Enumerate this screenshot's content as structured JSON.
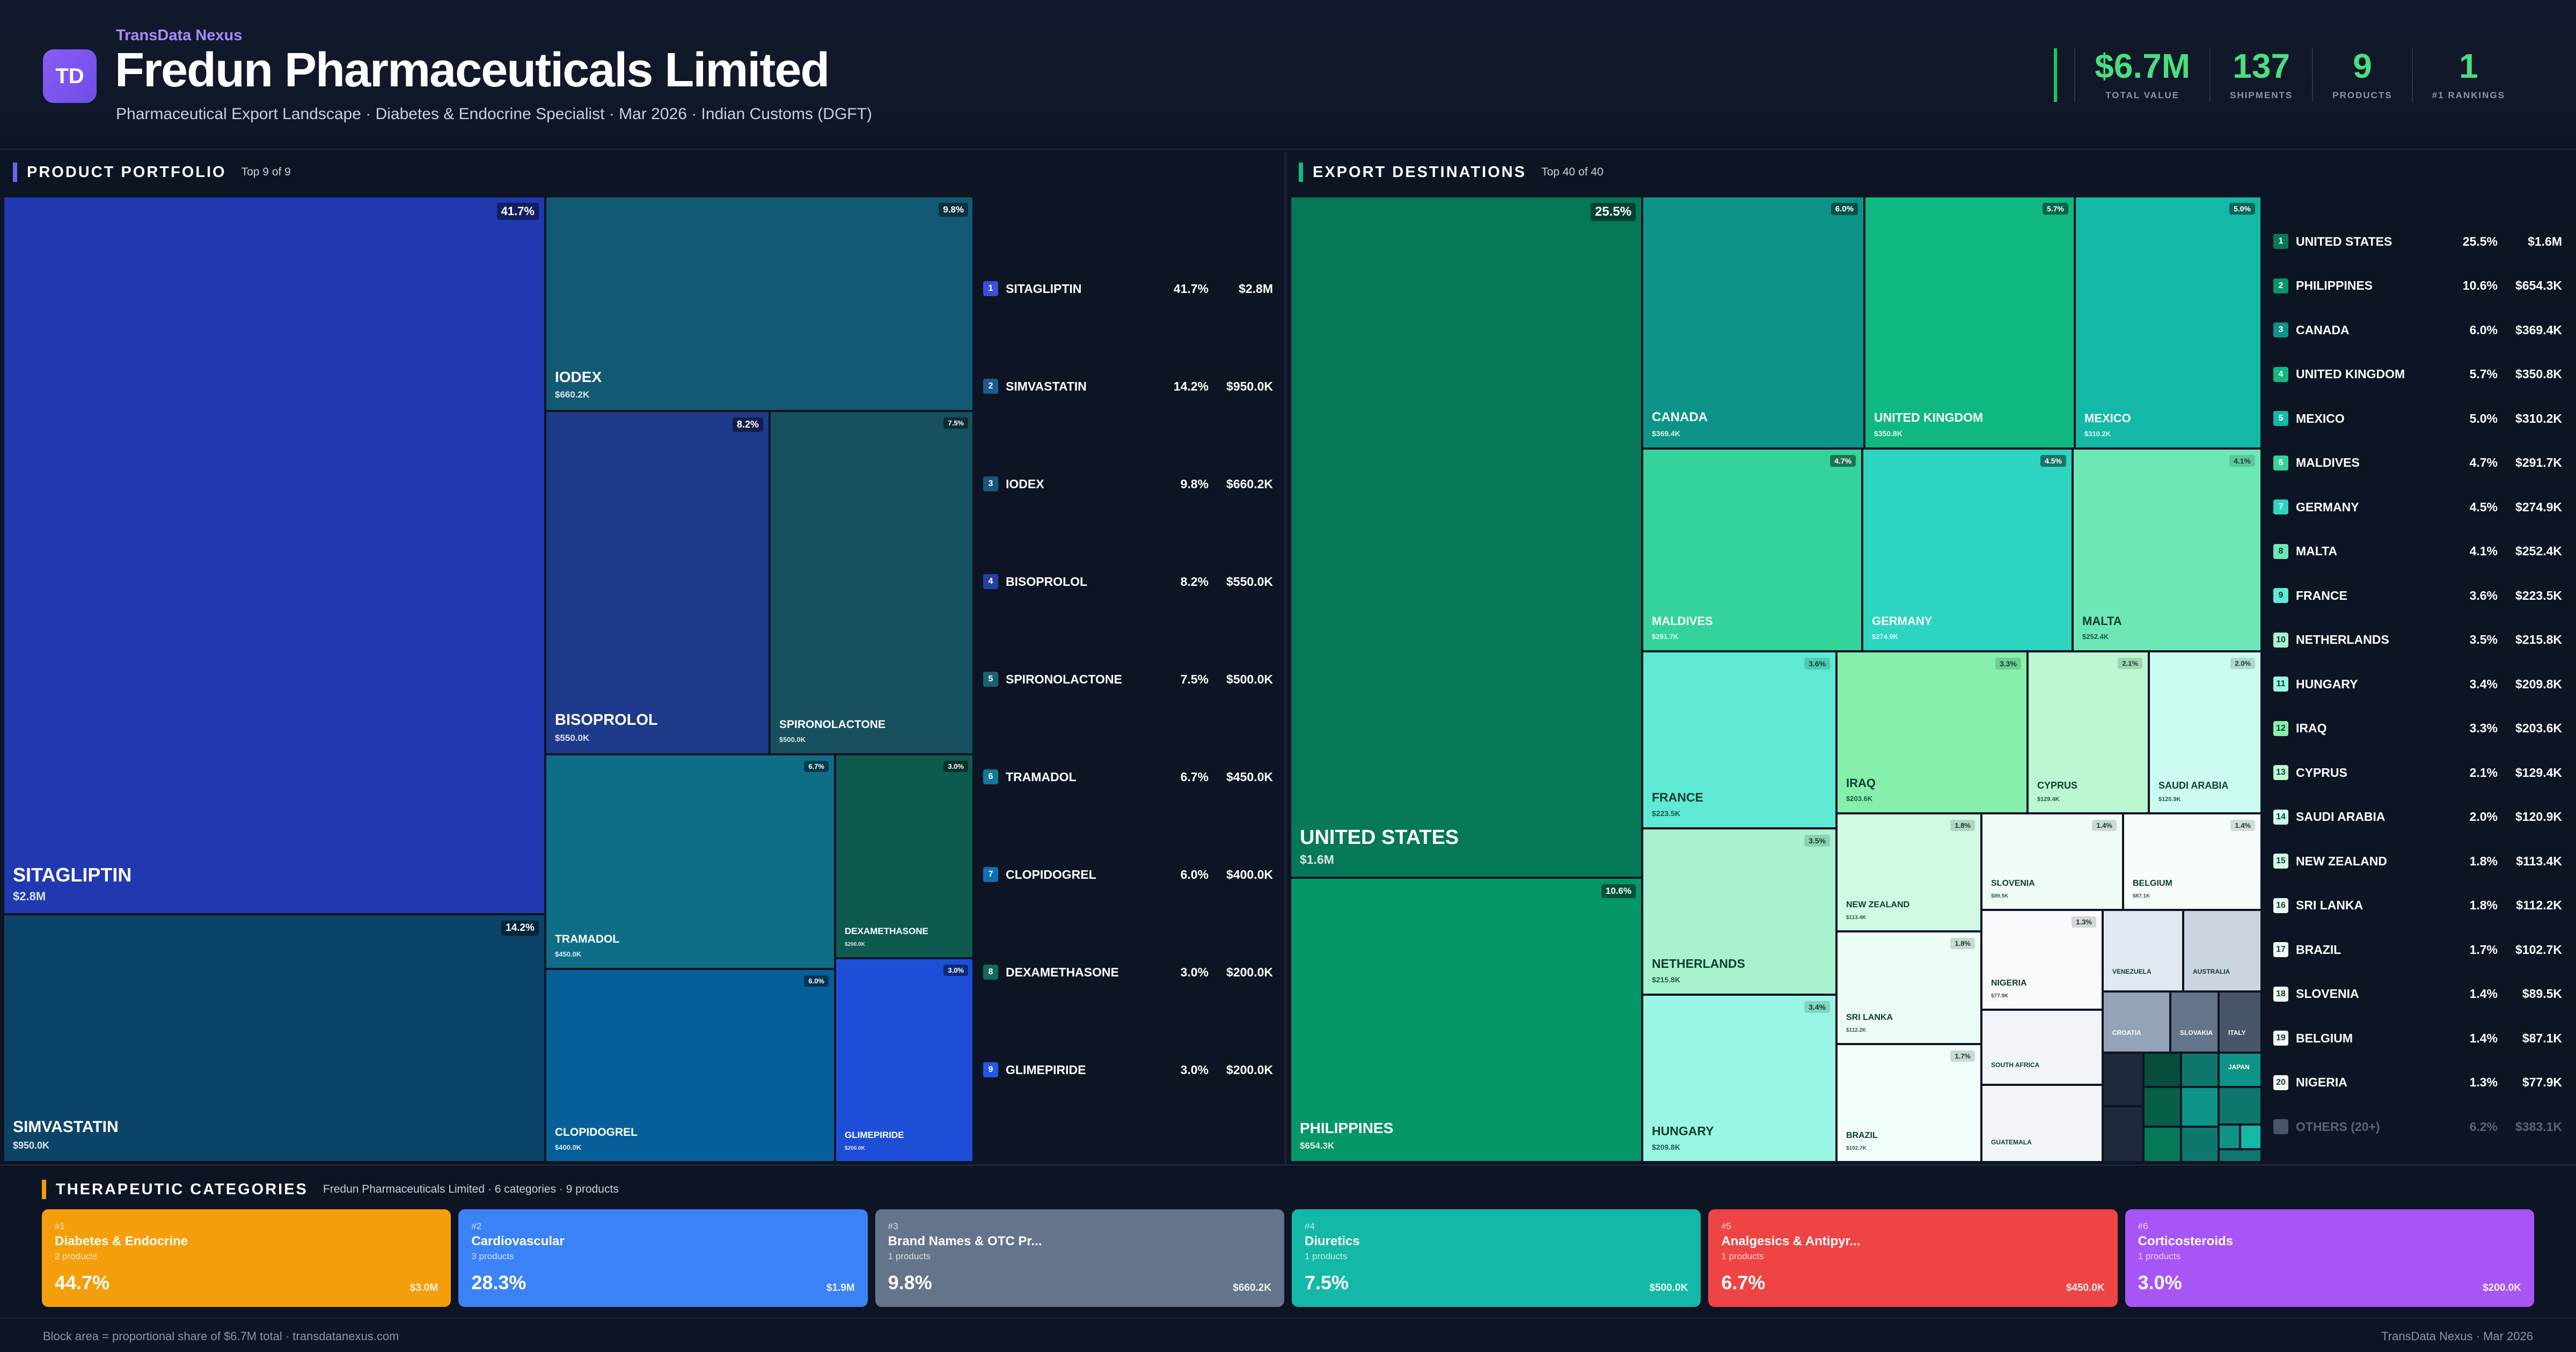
{
  "header": {
    "brand": "TransData Nexus",
    "logo_text": "TD",
    "company": "Fredun Pharmaceuticals Limited",
    "subtitle": "Pharmaceutical Export Landscape · Diabetes & Endocrine Specialist · Mar 2026 · Indian Customs (DGFT)",
    "stats": [
      {
        "value": "$6.7M",
        "label": "TOTAL VALUE"
      },
      {
        "value": "137",
        "label": "SHIPMENTS"
      },
      {
        "value": "9",
        "label": "PRODUCTS"
      },
      {
        "value": "1",
        "label": "#1 RANKINGS"
      }
    ]
  },
  "portfolio": {
    "title": "PRODUCT PORTFOLIO",
    "subtitle": "Top 9 of 9",
    "items": [
      {
        "name": "SITAGLIPTIN",
        "value": "$2.8M",
        "pct": "41.7%",
        "color": "#2038b0"
      },
      {
        "name": "SIMVASTATIN",
        "value": "$950.0K",
        "pct": "14.2%",
        "color": "#0c4468"
      },
      {
        "name": "IODEX",
        "value": "$660.2K",
        "pct": "9.8%",
        "color": "#125a74"
      },
      {
        "name": "BISOPROLOL",
        "value": "$550.0K",
        "pct": "8.2%",
        "color": "#1e3a8a"
      },
      {
        "name": "SPIRONOLACTONE",
        "value": "$500.0K",
        "pct": "7.5%",
        "color": "#17505e"
      },
      {
        "name": "TRAMADOL",
        "value": "$450.0K",
        "pct": "6.7%",
        "color": "#0e6e88"
      },
      {
        "name": "CLOPIDOGREL",
        "value": "$400.0K",
        "pct": "6.0%",
        "color": "#075f9a"
      },
      {
        "name": "DEXAMETHASONE",
        "value": "$200.0K",
        "pct": "3.0%",
        "color": "#0e5a50"
      },
      {
        "name": "GLIMEPIRIDE",
        "value": "$200.0K",
        "pct": "3.0%",
        "color": "#1d4ed8"
      }
    ]
  },
  "destinations": {
    "title": "EXPORT DESTINATIONS",
    "subtitle": "Top 40 of 40",
    "items": [
      {
        "name": "UNITED STATES",
        "value": "$1.6M",
        "pct": "25.5%",
        "color": "#047857"
      },
      {
        "name": "PHILIPPINES",
        "value": "$654.3K",
        "pct": "10.6%",
        "color": "#059669"
      },
      {
        "name": "CANADA",
        "value": "$369.4K",
        "pct": "6.0%",
        "color": "#0d9488"
      },
      {
        "name": "UNITED KINGDOM",
        "value": "$350.8K",
        "pct": "5.7%",
        "color": "#10b981"
      },
      {
        "name": "MEXICO",
        "value": "$310.2K",
        "pct": "5.0%",
        "color": "#14b8a6"
      },
      {
        "name": "MALDIVES",
        "value": "$291.7K",
        "pct": "4.7%",
        "color": "#34d399"
      },
      {
        "name": "GERMANY",
        "value": "$274.9K",
        "pct": "4.5%",
        "color": "#2dd4bf"
      },
      {
        "name": "MALTA",
        "value": "$252.4K",
        "pct": "4.1%",
        "color": "#6ee7b7"
      },
      {
        "name": "FRANCE",
        "value": "$223.5K",
        "pct": "3.6%",
        "color": "#5eead4"
      },
      {
        "name": "NETHERLANDS",
        "value": "$215.8K",
        "pct": "3.5%",
        "color": "#a7f3d0"
      },
      {
        "name": "HUNGARY",
        "value": "$209.8K",
        "pct": "3.4%",
        "color": "#99f6e4"
      },
      {
        "name": "IRAQ",
        "value": "$203.6K",
        "pct": "3.3%",
        "color": "#86efac"
      },
      {
        "name": "CYPRUS",
        "value": "$129.4K",
        "pct": "2.1%",
        "color": "#bbf7d0"
      },
      {
        "name": "SAUDI ARABIA",
        "value": "$120.9K",
        "pct": "2.0%",
        "color": "#ccfbf1"
      },
      {
        "name": "NEW ZEALAND",
        "value": "$113.4K",
        "pct": "1.8%",
        "color": "#d1fae5"
      },
      {
        "name": "SRI LANKA",
        "value": "$112.2K",
        "pct": "1.8%",
        "color": "#ecfdf5"
      },
      {
        "name": "BRAZIL",
        "value": "$102.7K",
        "pct": "1.7%",
        "color": "#f0fdfa"
      },
      {
        "name": "SLOVENIA",
        "value": "$89.5K",
        "pct": "1.4%",
        "color": "#f0fdf4"
      },
      {
        "name": "BELGIUM",
        "value": "$87.1K",
        "pct": "1.4%",
        "color": "#f7fef9"
      },
      {
        "name": "NIGERIA",
        "value": "$77.9K",
        "pct": "1.3%",
        "color": "#f8fafc"
      }
    ],
    "others": {
      "name": "OTHERS (20+)",
      "value": "$383.1K",
      "pct": "6.2%"
    },
    "small_blocks": [
      {
        "name": "SOUTH AFRICA",
        "color": "#f1f5f9"
      },
      {
        "name": "GUATEMALA",
        "color": "#f1f5f9"
      },
      {
        "name": "VENEZUELA",
        "color": "#e2e8f0"
      },
      {
        "name": "AUSTRALIA",
        "color": "#cbd5e1"
      },
      {
        "name": "CROATIA",
        "color": "#94a3b8"
      },
      {
        "name": "SLOVAKIA",
        "color": "#64748b"
      },
      {
        "name": "ITALY",
        "color": "#475569"
      },
      {
        "name": "JAPAN",
        "color": "#0d9488"
      }
    ]
  },
  "categories": {
    "title": "THERAPEUTIC CATEGORIES",
    "subtitle": "Fredun Pharmaceuticals Limited · 6 categories · 9 products",
    "items": [
      {
        "rank": "#1",
        "name": "Diabetes & Endocrine",
        "products": "2 products",
        "pct": "44.7%",
        "value": "$3.0M",
        "color": "#f59e0b"
      },
      {
        "rank": "#2",
        "name": "Cardiovascular",
        "products": "3 products",
        "pct": "28.3%",
        "value": "$1.9M",
        "color": "#3b82f6"
      },
      {
        "rank": "#3",
        "name": "Brand Names & OTC Pr...",
        "products": "1 products",
        "pct": "9.8%",
        "value": "$660.2K",
        "color": "#64748b"
      },
      {
        "rank": "#4",
        "name": "Diuretics",
        "products": "1 products",
        "pct": "7.5%",
        "value": "$500.0K",
        "color": "#14b8a6"
      },
      {
        "rank": "#5",
        "name": "Analgesics & Antipyr...",
        "products": "1 products",
        "pct": "6.7%",
        "value": "$450.0K",
        "color": "#ef4444"
      },
      {
        "rank": "#6",
        "name": "Corticosteroids",
        "products": "1 products",
        "pct": "3.0%",
        "value": "$200.0K",
        "color": "#a855f7"
      }
    ]
  },
  "footer": {
    "left": "Block area = proportional share of $6.7M total · transdatanexus.com",
    "right": "TransData Nexus · Mar 2026"
  }
}
